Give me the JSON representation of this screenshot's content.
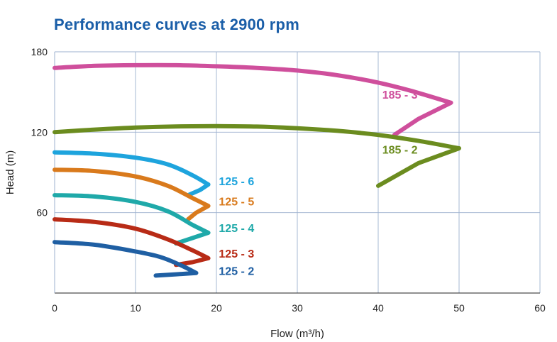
{
  "chart_data": {
    "type": "line",
    "title": "Performance curves at 2900 rpm",
    "xlabel": "Flow (m³/h)",
    "ylabel": "Head (m)",
    "xlim": [
      0,
      60
    ],
    "ylim": [
      0,
      180
    ],
    "xticks": [
      0,
      10,
      20,
      30,
      40,
      50,
      60
    ],
    "yticks": [
      60,
      120,
      180
    ],
    "grid": true,
    "series": [
      {
        "name": "185 - 3",
        "color": "#cf4f9c",
        "points": [
          [
            0,
            168
          ],
          [
            5,
            169.5
          ],
          [
            10,
            170
          ],
          [
            15,
            170
          ],
          [
            20,
            169.2
          ],
          [
            25,
            168
          ],
          [
            30,
            166
          ],
          [
            35,
            162.5
          ],
          [
            40,
            157
          ],
          [
            44,
            151
          ],
          [
            49,
            142
          ],
          [
            45,
            130
          ],
          [
            42,
            118
          ]
        ],
        "label_at": [
          40.5,
          145
        ]
      },
      {
        "name": "185 - 2",
        "color": "#6b8c1f",
        "points": [
          [
            0,
            120
          ],
          [
            5,
            122
          ],
          [
            10,
            123.5
          ],
          [
            15,
            124.3
          ],
          [
            20,
            124.5
          ],
          [
            25,
            124.2
          ],
          [
            30,
            123
          ],
          [
            35,
            121
          ],
          [
            40,
            118
          ],
          [
            45,
            113.5
          ],
          [
            50,
            108
          ],
          [
            45,
            97
          ],
          [
            40,
            80
          ]
        ],
        "label_at": [
          40.5,
          104
        ]
      },
      {
        "name": "125 - 6",
        "color": "#1ea4dd",
        "points": [
          [
            0,
            105
          ],
          [
            5,
            104
          ],
          [
            10,
            101
          ],
          [
            14,
            96
          ],
          [
            17,
            88
          ],
          [
            19,
            81
          ],
          [
            18,
            77
          ],
          [
            16.5,
            73
          ]
        ],
        "label_at": [
          20.3,
          80.5
        ]
      },
      {
        "name": "125 - 5",
        "color": "#d97a1c",
        "points": [
          [
            0,
            92
          ],
          [
            5,
            91
          ],
          [
            10,
            87
          ],
          [
            14,
            80
          ],
          [
            17,
            71
          ],
          [
            19,
            65
          ],
          [
            17.5,
            60
          ],
          [
            16.5,
            55
          ]
        ],
        "label_at": [
          20.3,
          65.5
        ]
      },
      {
        "name": "125 - 4",
        "color": "#1fa9a9",
        "points": [
          [
            0,
            73
          ],
          [
            5,
            72
          ],
          [
            10,
            68
          ],
          [
            14,
            61
          ],
          [
            17,
            51
          ],
          [
            19,
            45
          ],
          [
            17,
            41
          ],
          [
            15,
            37
          ]
        ],
        "label_at": [
          20.3,
          45.5
        ]
      },
      {
        "name": "125 - 3",
        "color": "#b82b16",
        "points": [
          [
            0,
            55
          ],
          [
            5,
            53
          ],
          [
            10,
            48
          ],
          [
            14,
            40
          ],
          [
            17,
            32
          ],
          [
            19,
            26
          ],
          [
            17,
            23
          ],
          [
            15,
            21
          ]
        ],
        "label_at": [
          20.3,
          26.5
        ]
      },
      {
        "name": "125 - 2",
        "color": "#1f5fa3",
        "points": [
          [
            0,
            38
          ],
          [
            5,
            36
          ],
          [
            10,
            31
          ],
          [
            13,
            27
          ],
          [
            15.5,
            21
          ],
          [
            17.5,
            15
          ],
          [
            15,
            14
          ],
          [
            12.5,
            13
          ]
        ],
        "label_at": [
          20.3,
          13.5
        ]
      }
    ]
  }
}
